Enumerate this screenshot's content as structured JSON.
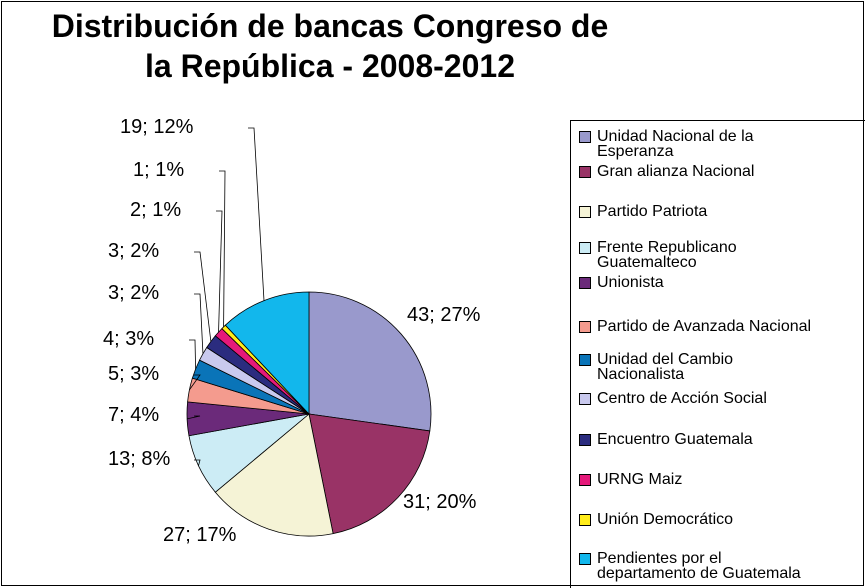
{
  "chart_data": {
    "type": "pie",
    "title": "Distribución de bancas Congreso de la República - 2008-2012",
    "slices": [
      {
        "name": "Unidad Nacional de la Esperanza",
        "value": 43,
        "label": "43; 27%",
        "color": "#9999cc"
      },
      {
        "name": "Gran alianza Nacional",
        "value": 31,
        "label": "31; 20%",
        "color": "#993366"
      },
      {
        "name": "Partido Patriota",
        "value": 27,
        "label": "27; 17%",
        "color": "#f5f3d6"
      },
      {
        "name": "Frente Republicano Guatemalteco",
        "value": 13,
        "label": "13; 8%",
        "color": "#ccecf5"
      },
      {
        "name": "Unionista",
        "value": 7,
        "label": "7; 4%",
        "color": "#6b2a7a"
      },
      {
        "name": "Partido de Avanzada Nacional",
        "value": 5,
        "label": "5; 3%",
        "color": "#f49b8e"
      },
      {
        "name": "Unidad del Cambio Nacionalista",
        "value": 4,
        "label": "4; 3%",
        "color": "#0a74b8"
      },
      {
        "name": "Centro de Acción Social",
        "value": 3,
        "label": "3; 2%",
        "color": "#c9c9ee"
      },
      {
        "name": "Encuentro Guatemala",
        "value": 3,
        "label": "3; 2%",
        "color": "#2b2c7f"
      },
      {
        "name": "URNG Maiz",
        "value": 2,
        "label": "2; 1%",
        "color": "#e5197a"
      },
      {
        "name": "Unión Democrático",
        "value": 1,
        "label": "1; 1%",
        "color": "#ffec1a"
      },
      {
        "name": "Pendientes por el departamento de Guatemala",
        "value": 19,
        "label": "19; 12%",
        "color": "#12b7ec"
      }
    ],
    "legend_position": "right"
  }
}
